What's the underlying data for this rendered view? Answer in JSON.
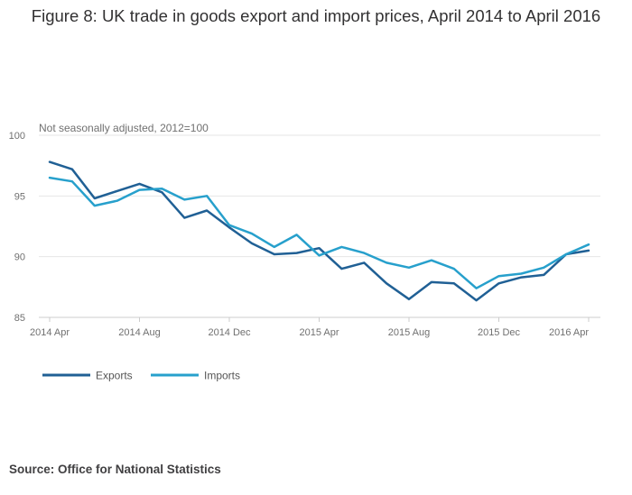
{
  "title": "Figure 8: UK trade in goods export and import prices, April 2014 to April 2016",
  "source": {
    "prefix": "Source:",
    "text": "Office for National Statistics"
  },
  "colors": {
    "exports": "#206095",
    "imports": "#27a0cc",
    "grid": "#e6e6e6",
    "axis": "#cccccc",
    "text": "#707070"
  },
  "chart_data": {
    "type": "line",
    "subtitle": "Not seasonally adjusted, 2012=100",
    "xlabel": "",
    "ylabel": "",
    "ylim": [
      85,
      100
    ],
    "y_ticks": [
      "100",
      "95",
      "90",
      "85"
    ],
    "grid": true,
    "legend_position": "bottom-left",
    "x": [
      "2014 Apr",
      "2014 May",
      "2014 Jun",
      "2014 Jul",
      "2014 Aug",
      "2014 Sep",
      "2014 Oct",
      "2014 Nov",
      "2014 Dec",
      "2015 Jan",
      "2015 Feb",
      "2015 Mar",
      "2015 Apr",
      "2015 May",
      "2015 Jun",
      "2015 Jul",
      "2015 Aug",
      "2015 Sep",
      "2015 Oct",
      "2015 Nov",
      "2015 Dec",
      "2016 Jan",
      "2016 Feb",
      "2016 Mar",
      "2016 Apr"
    ],
    "x_tick_labels": [
      {
        "index": 0,
        "label": "2014 Apr"
      },
      {
        "index": 4,
        "label": "2014 Aug"
      },
      {
        "index": 8,
        "label": "2014 Dec"
      },
      {
        "index": 12,
        "label": "2015 Apr"
      },
      {
        "index": 16,
        "label": "2015 Aug"
      },
      {
        "index": 20,
        "label": "2015 Dec"
      },
      {
        "index": 24,
        "label": "2016 Apr"
      }
    ],
    "series": [
      {
        "name": "Exports",
        "values": [
          97.8,
          97.2,
          94.8,
          95.4,
          96.0,
          95.3,
          93.2,
          93.8,
          92.4,
          91.1,
          90.2,
          90.3,
          90.7,
          89.0,
          89.5,
          87.8,
          86.5,
          87.9,
          87.8,
          86.4,
          87.8,
          88.3,
          88.5,
          90.2,
          90.5
        ]
      },
      {
        "name": "Imports",
        "values": [
          96.5,
          96.2,
          94.2,
          94.6,
          95.5,
          95.6,
          94.7,
          95.0,
          92.6,
          91.9,
          90.8,
          91.8,
          90.1,
          90.8,
          90.3,
          89.5,
          89.1,
          89.7,
          89.0,
          87.4,
          88.4,
          88.6,
          89.1,
          90.2,
          91.0
        ]
      }
    ]
  }
}
